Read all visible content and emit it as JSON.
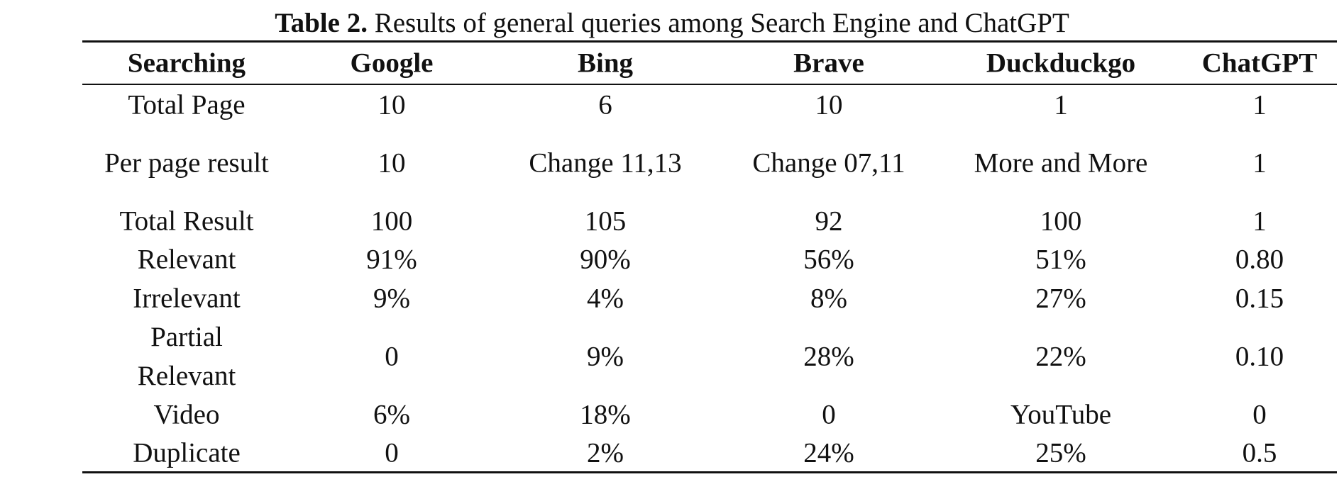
{
  "caption": {
    "label": "Table 2.",
    "text": "Results of general queries among Search Engine and ChatGPT"
  },
  "table": {
    "header": [
      "Searching",
      "Google",
      "Bing",
      "Brave",
      "Duckduckgo",
      "ChatGPT"
    ],
    "rows": [
      [
        "Total Page",
        "10",
        "6",
        "10",
        "1",
        "1"
      ],
      [
        "Per page result",
        "10",
        "Change 11,13",
        "Change 07,11",
        "More and More",
        "1"
      ],
      [
        "Total Result",
        "100",
        "105",
        "92",
        "100",
        "1"
      ],
      [
        "Relevant",
        "91%",
        "90%",
        "56%",
        "51%",
        "0.80"
      ],
      [
        "Irrelevant",
        "9%",
        "4%",
        "8%",
        "27%",
        "0.15"
      ],
      [
        "Partial Relevant",
        "0",
        "9%",
        "28%",
        "22%",
        "0.10"
      ],
      [
        "Video",
        "6%",
        "18%",
        "0",
        "YouTube",
        "0"
      ],
      [
        "Duplicate",
        "0",
        "2%",
        "24%",
        "25%",
        "0.5"
      ]
    ]
  }
}
